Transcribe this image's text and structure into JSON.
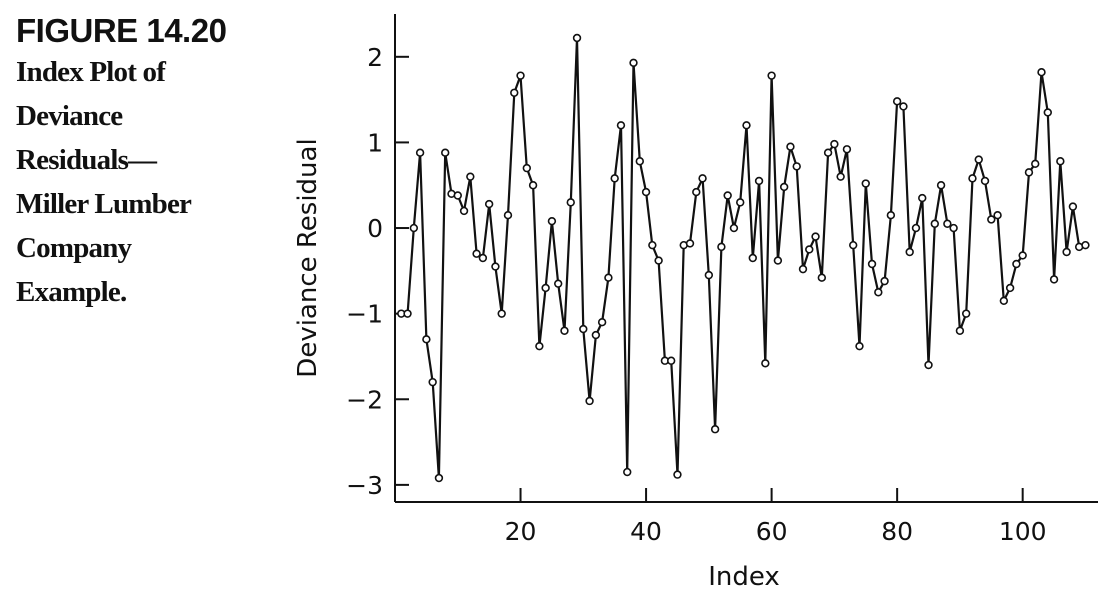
{
  "caption": {
    "figure_label": "FIGURE 14.20",
    "lines": [
      "Index Plot of",
      "Deviance",
      "Residuals—",
      "Miller Lumber",
      "Company",
      "Example."
    ]
  },
  "chart_data": {
    "type": "line",
    "title": "",
    "xlabel": "Index",
    "ylabel": "Deviance Residual",
    "xlim": [
      0,
      112
    ],
    "ylim": [
      -3.2,
      2.5
    ],
    "x_ticks": [
      20,
      40,
      60,
      80,
      100
    ],
    "x_tick_labels": [
      "20",
      "40",
      "60",
      "80",
      "100"
    ],
    "y_ticks": [
      2,
      1,
      0,
      -1,
      -2,
      -3
    ],
    "y_tick_labels": [
      "2",
      "1",
      "0",
      "−1",
      "−2",
      "−3"
    ],
    "markers": "open-circle",
    "series": [
      {
        "x": [
          1,
          2,
          3,
          4,
          5,
          6,
          7,
          8,
          9,
          10,
          11,
          12,
          13,
          14,
          15,
          16,
          17,
          18,
          19,
          20,
          21,
          22,
          23,
          24,
          25,
          26,
          27,
          28,
          29,
          30,
          31,
          32,
          33,
          34,
          35,
          36,
          37,
          38,
          39,
          40,
          41,
          42,
          43,
          44,
          45,
          46,
          47,
          48,
          49,
          50,
          51,
          52,
          53,
          54,
          55,
          56,
          57,
          58,
          59,
          60,
          61,
          62,
          63,
          64,
          65,
          66,
          67,
          68,
          69,
          70,
          71,
          72,
          73,
          74,
          75,
          76,
          77,
          78,
          79,
          80,
          81,
          82,
          83,
          84,
          85,
          86,
          87,
          88,
          89,
          90,
          91,
          92,
          93,
          94,
          95,
          96,
          97,
          98,
          99,
          100,
          101,
          102,
          103,
          104,
          105,
          106,
          107,
          108,
          109,
          110
        ],
        "y": [
          -1.0,
          -1.0,
          0.0,
          0.88,
          -1.3,
          -1.8,
          -2.92,
          0.88,
          0.4,
          0.38,
          0.2,
          0.6,
          -0.3,
          -0.35,
          0.28,
          -0.45,
          -1.0,
          0.15,
          1.58,
          1.78,
          0.7,
          0.5,
          -1.38,
          -0.7,
          0.08,
          -0.65,
          -1.2,
          0.3,
          2.22,
          -1.18,
          -2.02,
          -1.25,
          -1.1,
          -0.58,
          0.58,
          1.2,
          -2.85,
          1.93,
          0.78,
          0.42,
          -0.2,
          -0.38,
          -1.55,
          -1.55,
          -2.88,
          -0.2,
          -0.18,
          0.42,
          0.58,
          -0.55,
          -2.35,
          -0.22,
          0.38,
          0.0,
          0.3,
          1.2,
          -0.35,
          0.55,
          -1.58,
          1.78,
          -0.38,
          0.48,
          0.95,
          0.72,
          -0.48,
          -0.25,
          -0.1,
          -0.58,
          0.88,
          0.98,
          0.6,
          0.92,
          -0.2,
          -1.38,
          0.52,
          -0.42,
          -0.75,
          -0.62,
          0.15,
          1.48,
          1.42,
          -0.28,
          0.0,
          0.35,
          -1.6,
          0.05,
          0.5,
          0.05,
          0.0,
          -1.2,
          -1.0,
          0.58,
          0.8,
          0.55,
          0.1,
          0.15,
          -0.85,
          -0.7,
          -0.42,
          -0.32,
          0.65,
          0.75,
          1.82,
          1.35,
          -0.6,
          0.78,
          -0.28,
          0.25,
          -0.22,
          -0.2
        ]
      }
    ]
  }
}
